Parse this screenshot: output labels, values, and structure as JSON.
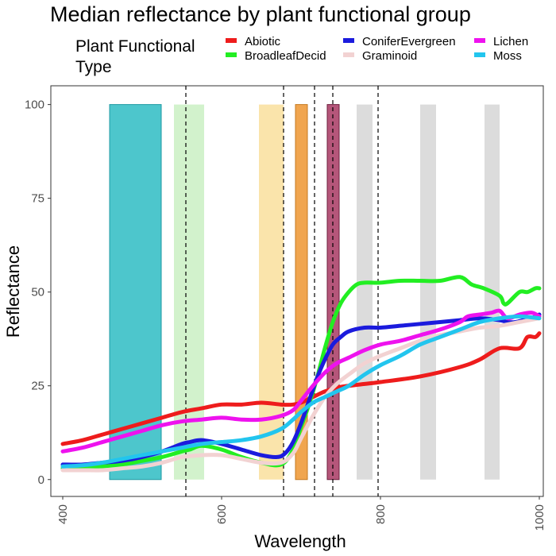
{
  "chart_data": {
    "type": "line",
    "title": "Median reflectance by plant functional group",
    "xlabel": "Wavelength",
    "ylabel": "Reflectance",
    "xlim": [
      385,
      1005
    ],
    "ylim": [
      -4.5,
      105
    ],
    "x_ticks": [
      400,
      600,
      800,
      1000
    ],
    "y_ticks": [
      0,
      25,
      50,
      75,
      100
    ],
    "grid": false,
    "legend": {
      "title_lines": [
        "Plant Functional",
        "Type"
      ],
      "placement": "top"
    },
    "bands": [
      {
        "x0": 459,
        "x1": 524,
        "y0": 0,
        "y1": 100,
        "color": "#4dc6cc",
        "stroke": "#1f9aa3",
        "opacity": 1
      },
      {
        "x0": 540,
        "x1": 578,
        "y0": 0,
        "y1": 100,
        "color": "#a6e59a",
        "stroke": "none",
        "opacity": 0.5
      },
      {
        "x0": 647,
        "x1": 678,
        "y0": 0,
        "y1": 100,
        "color": "#f9df9c",
        "stroke": "none",
        "opacity": 0.85
      },
      {
        "x0": 693,
        "x1": 708,
        "y0": 0,
        "y1": 100,
        "color": "#f0a54f",
        "stroke": "#c47a22",
        "opacity": 1
      },
      {
        "x0": 733,
        "x1": 748,
        "y0": 0,
        "y1": 100,
        "color": "#b5567a",
        "stroke": "#6e1f3e",
        "opacity": 1
      },
      {
        "x0": 770,
        "x1": 790,
        "y0": 0,
        "y1": 100,
        "color": "#dcdcdc",
        "stroke": "none",
        "opacity": 1
      },
      {
        "x0": 850,
        "x1": 870,
        "y0": 0,
        "y1": 100,
        "color": "#dcdcdc",
        "stroke": "none",
        "opacity": 1
      },
      {
        "x0": 931,
        "x1": 950,
        "y0": 0,
        "y1": 100,
        "color": "#dcdcdc",
        "stroke": "none",
        "opacity": 1
      }
    ],
    "vlines": [
      555,
      678,
      717,
      740,
      797
    ],
    "series": [
      {
        "name": "Abiotic",
        "color": "#ee1c1c",
        "x": [
          400,
          425,
          450,
          475,
          500,
          525,
          550,
          575,
          600,
          625,
          650,
          675,
          690,
          700,
          715,
          730,
          745,
          760,
          780,
          800,
          850,
          900,
          925,
          950,
          975,
          985,
          995,
          1000
        ],
        "y": [
          9.5,
          10.5,
          12,
          13.5,
          15,
          16.5,
          18,
          19,
          20,
          20,
          20.5,
          20,
          20,
          20.5,
          22,
          23.5,
          24.5,
          25,
          25.5,
          26,
          27.5,
          30,
          32,
          35,
          35,
          38,
          38,
          39
        ]
      },
      {
        "name": "BroadleafDecid",
        "color": "#22ee22",
        "x": [
          400,
          425,
          450,
          475,
          500,
          525,
          550,
          560,
          575,
          600,
          625,
          650,
          675,
          690,
          700,
          710,
          720,
          730,
          740,
          750,
          760,
          770,
          780,
          800,
          825,
          850,
          875,
          900,
          915,
          930,
          950,
          955,
          960,
          975,
          985,
          995,
          1000
        ],
        "y": [
          3,
          3.2,
          3.5,
          4,
          5,
          6,
          7.5,
          8,
          9,
          8,
          6,
          4.5,
          4,
          8,
          14,
          20,
          27,
          35,
          42,
          47,
          50,
          52,
          52.5,
          52.5,
          53,
          53,
          53,
          54,
          52,
          51,
          49,
          47,
          47,
          50,
          50,
          51,
          51
        ]
      },
      {
        "name": "ConiferEvergreen",
        "color": "#1b1bdd",
        "x": [
          400,
          425,
          450,
          475,
          500,
          525,
          550,
          560,
          575,
          600,
          625,
          650,
          670,
          680,
          690,
          700,
          710,
          720,
          730,
          740,
          750,
          760,
          780,
          800,
          825,
          850,
          875,
          900,
          925,
          950,
          960,
          970,
          980,
          990,
          1000
        ],
        "y": [
          4,
          4,
          4.5,
          5,
          6,
          7.5,
          9.5,
          10,
          10.5,
          9.5,
          8,
          6.5,
          6,
          7,
          10,
          15,
          21,
          27,
          32,
          36,
          38,
          39.5,
          40.5,
          40.5,
          41,
          41.5,
          42,
          42.5,
          43,
          42.5,
          42,
          42,
          42.5,
          43,
          44
        ]
      },
      {
        "name": "Graminoid",
        "color": "#f2d2d2",
        "x": [
          400,
          425,
          450,
          475,
          500,
          525,
          550,
          575,
          600,
          625,
          650,
          675,
          690,
          700,
          715,
          730,
          745,
          760,
          780,
          800,
          825,
          850,
          875,
          900,
          925,
          950,
          975,
          1000
        ],
        "y": [
          2.5,
          2.5,
          2.5,
          3,
          3.5,
          4.5,
          6,
          6.5,
          6.5,
          5.5,
          4.5,
          4.5,
          7,
          11,
          17,
          22,
          25.5,
          28,
          31,
          33,
          35,
          37,
          38.5,
          39.5,
          40.5,
          41,
          42,
          43
        ]
      },
      {
        "name": "Lichen",
        "color": "#ee12ee",
        "x": [
          400,
          425,
          450,
          475,
          500,
          525,
          550,
          575,
          600,
          625,
          650,
          675,
          690,
          700,
          715,
          730,
          745,
          760,
          780,
          800,
          825,
          850,
          875,
          900,
          910,
          925,
          940,
          950,
          960,
          975,
          990,
          1000
        ],
        "y": [
          7.5,
          8.5,
          10,
          11.5,
          13,
          14.5,
          15.5,
          16,
          16.5,
          16,
          16,
          17,
          18.5,
          21,
          25,
          28.5,
          31,
          32.5,
          34.5,
          36,
          37,
          38.5,
          40,
          42,
          43.5,
          44,
          44.5,
          45,
          43,
          44,
          44.5,
          43.5
        ]
      },
      {
        "name": "Moss",
        "color": "#22c5ee",
        "x": [
          400,
          425,
          450,
          475,
          500,
          525,
          550,
          575,
          600,
          625,
          650,
          675,
          690,
          700,
          715,
          730,
          745,
          760,
          780,
          800,
          825,
          850,
          875,
          900,
          925,
          950,
          975,
          1000
        ],
        "y": [
          3.5,
          3.8,
          4.5,
          5.5,
          6.5,
          7.5,
          8.5,
          9.5,
          10,
          10.5,
          11.5,
          13.5,
          16,
          18,
          20.5,
          22,
          23.5,
          25,
          28,
          30.5,
          33,
          36,
          38,
          40,
          42,
          43,
          43.5,
          43
        ]
      }
    ]
  }
}
